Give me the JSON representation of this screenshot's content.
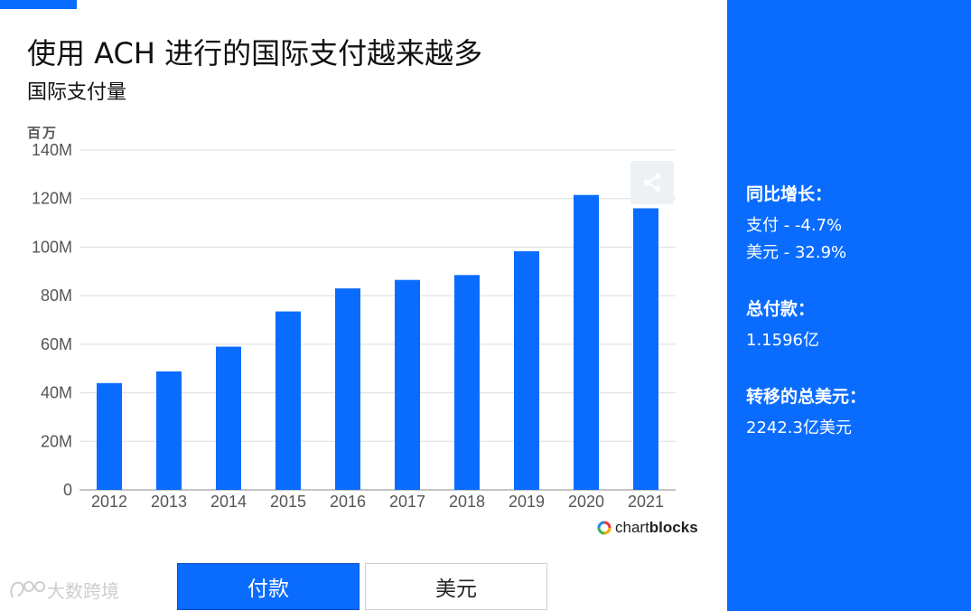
{
  "header": {
    "title": "使用 ACH 进行的国际支付越来越多",
    "subtitle": "国际支付量",
    "unit_label": "百万"
  },
  "chart_data": {
    "type": "bar",
    "categories": [
      "2012",
      "2013",
      "2014",
      "2015",
      "2016",
      "2017",
      "2018",
      "2019",
      "2020",
      "2021"
    ],
    "values": [
      44,
      48.8,
      59,
      73.5,
      83,
      86.5,
      88.5,
      98.3,
      121.5,
      116
    ],
    "y_ticks": [
      "0",
      "20M",
      "40M",
      "60M",
      "80M",
      "100M",
      "120M",
      "140M"
    ],
    "ylim": [
      0,
      140
    ],
    "ylabel": "百万",
    "grid": true,
    "bar_color": "#0a6cff"
  },
  "brand": {
    "prefix": "chart",
    "suffix": "blocks"
  },
  "tabs": [
    {
      "label": "付款",
      "active": true
    },
    {
      "label": "美元",
      "active": false
    }
  ],
  "watermark": "大数跨境",
  "sidebar": {
    "growth_heading": "同比增长：",
    "growth_payments": "支付 - -4.7%",
    "growth_usd": "美元 - 32.9%",
    "total_heading": "总付款：",
    "total_value": "1.1596亿",
    "usd_heading": "转移的总美元：",
    "usd_value": "2242.3亿美元"
  },
  "colors": {
    "accent": "#0a6cff",
    "grid": "#dddddd",
    "axis": "#555555"
  }
}
